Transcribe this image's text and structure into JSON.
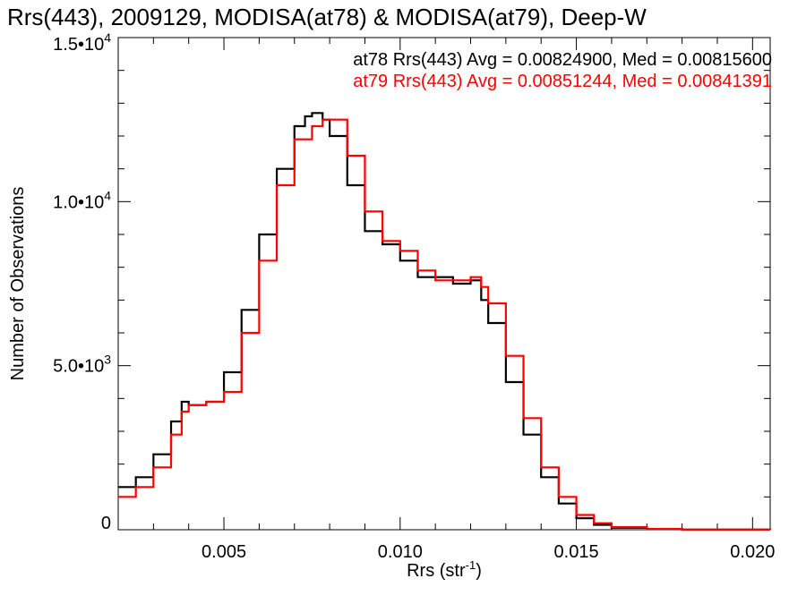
{
  "chart_data": {
    "type": "line",
    "style": "histogram-step",
    "title": "Rrs(443), 2009129, MODISA(at78) & MODISA(at79), Deep-W",
    "xlabel": "Rrs (str",
    "xlabel_sup": "-1",
    "xlabel_suffix": ")",
    "ylabel": "Number of Observations",
    "xlim": [
      0.002,
      0.0205
    ],
    "ylim": [
      0,
      15000
    ],
    "grid": false,
    "legend_position": "top-right",
    "x_ticks": [
      {
        "value": 0.005,
        "label": "0.005"
      },
      {
        "value": 0.01,
        "label": "0.010"
      },
      {
        "value": 0.015,
        "label": "0.015"
      },
      {
        "value": 0.02,
        "label": "0.020"
      }
    ],
    "y_ticks": [
      {
        "value": 0,
        "mantissa": "0",
        "exp": ""
      },
      {
        "value": 5000,
        "mantissa": "5.0•10",
        "exp": "3"
      },
      {
        "value": 10000,
        "mantissa": "1.0•10",
        "exp": "4"
      },
      {
        "value": 15000,
        "mantissa": "1.5•10",
        "exp": "4"
      }
    ],
    "series": [
      {
        "name": "at78",
        "color": "#000000",
        "stats_label": "at78 Rrs(443) Avg = 0.00824900, Med = 0.00815600",
        "x": [
          0.002,
          0.0025,
          0.003,
          0.0035,
          0.0038,
          0.004,
          0.0045,
          0.005,
          0.0055,
          0.006,
          0.0065,
          0.007,
          0.0073,
          0.0075,
          0.0078,
          0.008,
          0.0085,
          0.009,
          0.0095,
          0.01,
          0.0105,
          0.011,
          0.0115,
          0.0118,
          0.012,
          0.0123,
          0.0125,
          0.013,
          0.0135,
          0.014,
          0.0145,
          0.015,
          0.0155,
          0.016,
          0.017,
          0.018,
          0.0205
        ],
        "values": [
          1300,
          1600,
          2300,
          3300,
          3900,
          3800,
          3900,
          4800,
          6700,
          9000,
          11000,
          12300,
          12600,
          12700,
          12500,
          12000,
          10500,
          9100,
          8700,
          8200,
          7700,
          7700,
          7500,
          7500,
          7600,
          7000,
          6300,
          4500,
          2900,
          1600,
          800,
          350,
          150,
          60,
          20,
          5,
          0
        ]
      },
      {
        "name": "at79",
        "color": "#ff0000",
        "stats_label": "at79 Rrs(443) Avg = 0.00851244, Med = 0.00841391",
        "x": [
          0.002,
          0.0025,
          0.003,
          0.0035,
          0.0038,
          0.004,
          0.0045,
          0.005,
          0.0055,
          0.006,
          0.0065,
          0.007,
          0.0075,
          0.0078,
          0.008,
          0.0085,
          0.009,
          0.0095,
          0.01,
          0.0105,
          0.011,
          0.0115,
          0.0118,
          0.012,
          0.0123,
          0.0125,
          0.013,
          0.0135,
          0.014,
          0.0145,
          0.015,
          0.0155,
          0.016,
          0.017,
          0.018,
          0.0205
        ],
        "values": [
          1000,
          1300,
          1900,
          2900,
          3600,
          3800,
          3900,
          4200,
          6000,
          8200,
          10500,
          11900,
          12300,
          12500,
          12500,
          11400,
          9700,
          8800,
          8500,
          7900,
          7600,
          7600,
          7600,
          7700,
          7400,
          6900,
          5300,
          3400,
          1900,
          1000,
          450,
          200,
          80,
          25,
          5,
          0
        ]
      }
    ]
  }
}
